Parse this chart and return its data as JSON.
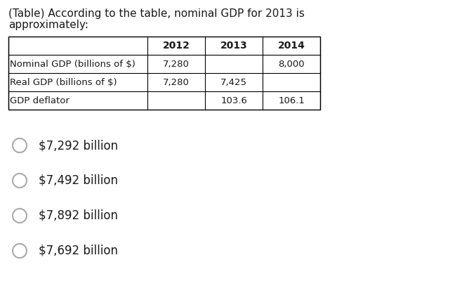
{
  "title_line1": "(Table) According to the table, nominal GDP for 2013 is",
  "title_line2": "approximately:",
  "table_headers": [
    "",
    "2012",
    "2013",
    "2014"
  ],
  "table_rows": [
    [
      "Nominal GDP (billions of $)",
      "7,280",
      "",
      "8,000"
    ],
    [
      "Real GDP (billions of $)",
      "7,280",
      "7,425",
      ""
    ],
    [
      "GDP deflator",
      "",
      "103.6",
      "106.1"
    ]
  ],
  "options": [
    "$7,292 billion",
    "$7,492 billion",
    "$7,892 billion",
    "$7,692 billion"
  ],
  "bg_color": "#ffffff",
  "text_color": "#1a1a1a",
  "circle_color": "#aaaaaa",
  "header_fontsize": 10,
  "cell_fontsize": 9.5,
  "option_font_size": 12,
  "title_fontsize": 11
}
